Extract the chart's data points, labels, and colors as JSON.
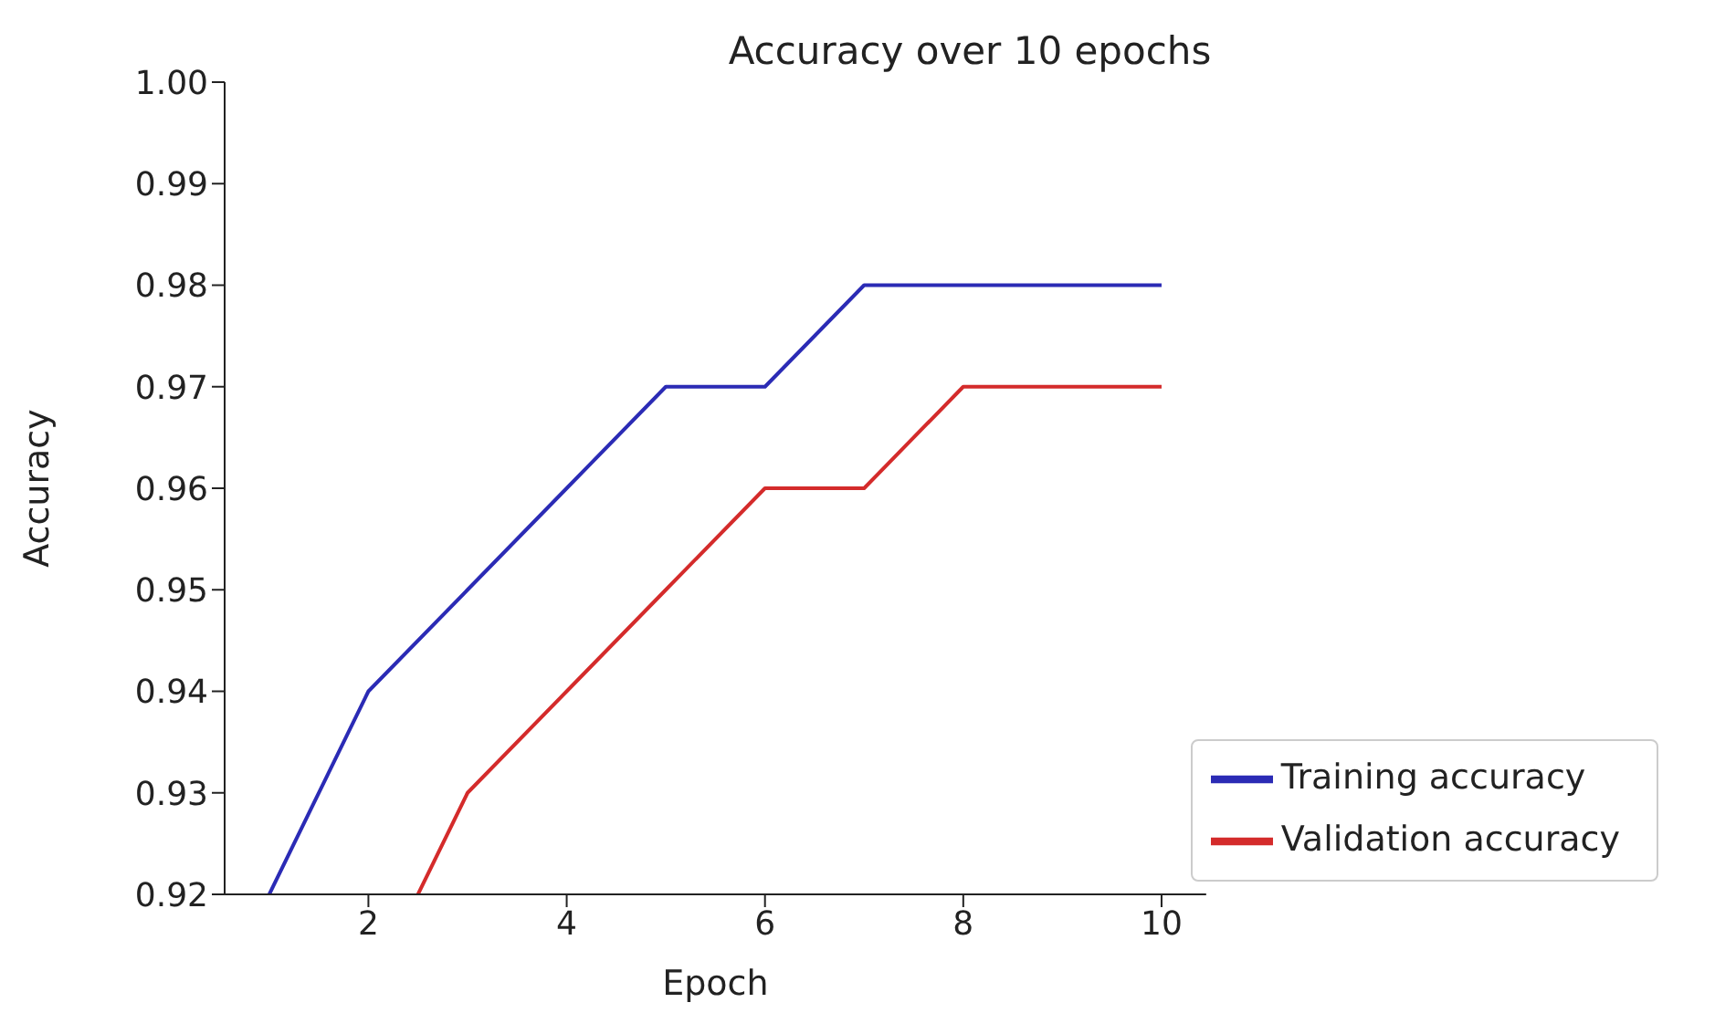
{
  "chart_data": {
    "type": "line",
    "title": "Accuracy over 10 epochs",
    "xlabel": "Epoch",
    "ylabel": "Accuracy",
    "series": [
      {
        "name": "Training accuracy",
        "color": "#2b2bb5",
        "x": [
          1,
          2,
          3,
          4,
          5,
          6,
          7,
          8,
          9,
          10
        ],
        "values": [
          0.92,
          0.94,
          0.95,
          0.96,
          0.97,
          0.97,
          0.98,
          0.98,
          0.98,
          0.98
        ]
      },
      {
        "name": "Validation accuracy",
        "color": "#d42b2b",
        "x": [
          2.5,
          3,
          4,
          5,
          6,
          7,
          8,
          9,
          10
        ],
        "values": [
          0.92,
          0.93,
          0.94,
          0.95,
          0.96,
          0.96,
          0.97,
          0.97,
          0.97
        ]
      }
    ],
    "xlim": [
      0.55,
      10.45
    ],
    "xticks": [
      2,
      4,
      6,
      8,
      10
    ],
    "ylim": [
      0.92,
      1.0
    ],
    "yticks": [
      0.92,
      0.93,
      0.94,
      0.95,
      0.96,
      0.97,
      0.98,
      0.99,
      {
        "value": 1.0,
        "label": "1.00"
      }
    ],
    "grid": false,
    "legend": "bottom right",
    "marker": "none",
    "line_style": "solid"
  }
}
